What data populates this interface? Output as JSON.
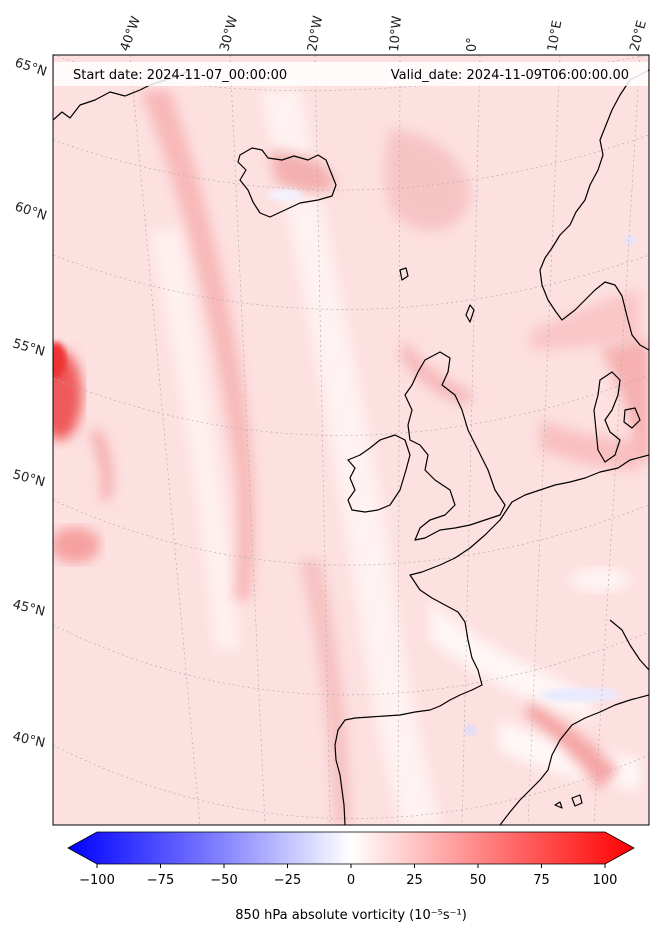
{
  "header": {
    "start_date": "Start date: 2024-11-07_00:00:00",
    "valid_date": "Valid_date: 2024-11-09T06:00:00.00"
  },
  "lon_labels": [
    "40°W",
    "30°W",
    "20°W",
    "10°W",
    "0°",
    "10°E",
    "20°E"
  ],
  "lat_labels": [
    "65°N",
    "60°N",
    "55°N",
    "50°N",
    "45°N",
    "40°N"
  ],
  "colorbar": {
    "title": "850 hPa absolute vorticity",
    "units": "(10⁻⁵s⁻¹)",
    "ticks": [
      "−100",
      "−75",
      "−50",
      "−25",
      "0",
      "25",
      "50",
      "75",
      "100"
    ],
    "min": -100,
    "max": 100,
    "min_color": "#0000ff",
    "mid_color": "#ffffff",
    "max_color": "#ff0000"
  },
  "map": {
    "field_base_color": "#fde2e2",
    "coastline_color": "#000000",
    "grid_color": "#b0b0b0"
  }
}
